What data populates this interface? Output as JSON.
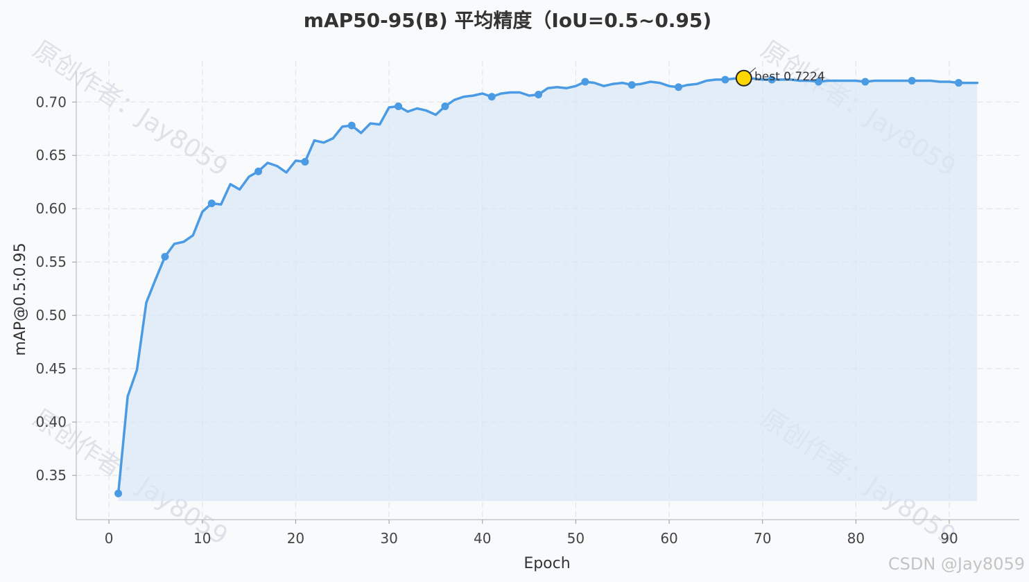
{
  "chart_data": {
    "type": "line",
    "title": "mAP50-95(B) 平均精度（IoU=0.5~0.95)",
    "xlabel": "Epoch",
    "ylabel": "mAP@0.5:0.95",
    "xlim": [
      -3.5,
      97.5
    ],
    "ylim": [
      0.3085,
      0.7385
    ],
    "xticks": [
      0,
      10,
      20,
      30,
      40,
      50,
      60,
      70,
      80,
      90
    ],
    "yticks": [
      0.35,
      0.4,
      0.45,
      0.5,
      0.55,
      0.6,
      0.65,
      0.7
    ],
    "grid": true,
    "fill_below": true,
    "fill_baseline": 0.326,
    "line_color": "#4a9be3",
    "fill_color": "#d6e6f6",
    "best_marker_color": "#ffd700",
    "marker_every": 5,
    "series": [
      {
        "x": [
          1,
          2,
          3,
          4,
          5,
          6,
          7,
          8,
          9,
          10,
          11,
          12,
          13,
          14,
          15,
          16,
          17,
          18,
          19,
          20,
          21,
          22,
          23,
          24,
          25,
          26,
          27,
          28,
          29,
          30,
          31,
          32,
          33,
          34,
          35,
          36,
          37,
          38,
          39,
          40,
          41,
          42,
          43,
          44,
          45,
          46,
          47,
          48,
          49,
          50,
          51,
          52,
          53,
          54,
          55,
          56,
          57,
          58,
          59,
          60,
          61,
          62,
          63,
          64,
          65,
          66,
          67,
          68,
          69,
          70,
          71,
          72,
          73,
          74,
          75,
          76,
          77,
          78,
          79,
          80,
          81,
          82,
          83,
          84,
          85,
          86,
          87,
          88,
          89,
          90,
          91,
          92,
          93
        ],
        "values": [
          0.333,
          0.424,
          0.449,
          0.512,
          0.534,
          0.555,
          0.567,
          0.569,
          0.575,
          0.597,
          0.605,
          0.604,
          0.623,
          0.618,
          0.63,
          0.635,
          0.643,
          0.64,
          0.634,
          0.645,
          0.644,
          0.664,
          0.662,
          0.666,
          0.677,
          0.678,
          0.671,
          0.68,
          0.679,
          0.695,
          0.696,
          0.691,
          0.694,
          0.692,
          0.688,
          0.696,
          0.702,
          0.705,
          0.706,
          0.708,
          0.705,
          0.708,
          0.709,
          0.709,
          0.706,
          0.707,
          0.713,
          0.714,
          0.713,
          0.715,
          0.719,
          0.718,
          0.715,
          0.717,
          0.718,
          0.716,
          0.717,
          0.719,
          0.718,
          0.715,
          0.714,
          0.716,
          0.717,
          0.72,
          0.721,
          0.721,
          0.722,
          0.7224,
          0.722,
          0.721,
          0.721,
          0.721,
          0.721,
          0.72,
          0.72,
          0.719,
          0.72,
          0.72,
          0.72,
          0.72,
          0.719,
          0.72,
          0.72,
          0.72,
          0.72,
          0.72,
          0.72,
          0.72,
          0.719,
          0.719,
          0.718,
          0.718,
          0.718
        ]
      }
    ],
    "best": {
      "x": 68,
      "y": 0.7224,
      "label": "best 0.7224"
    }
  },
  "watermark": {
    "text": "原创作者：Jay8059",
    "credit": "CSDN @Jay8059"
  }
}
